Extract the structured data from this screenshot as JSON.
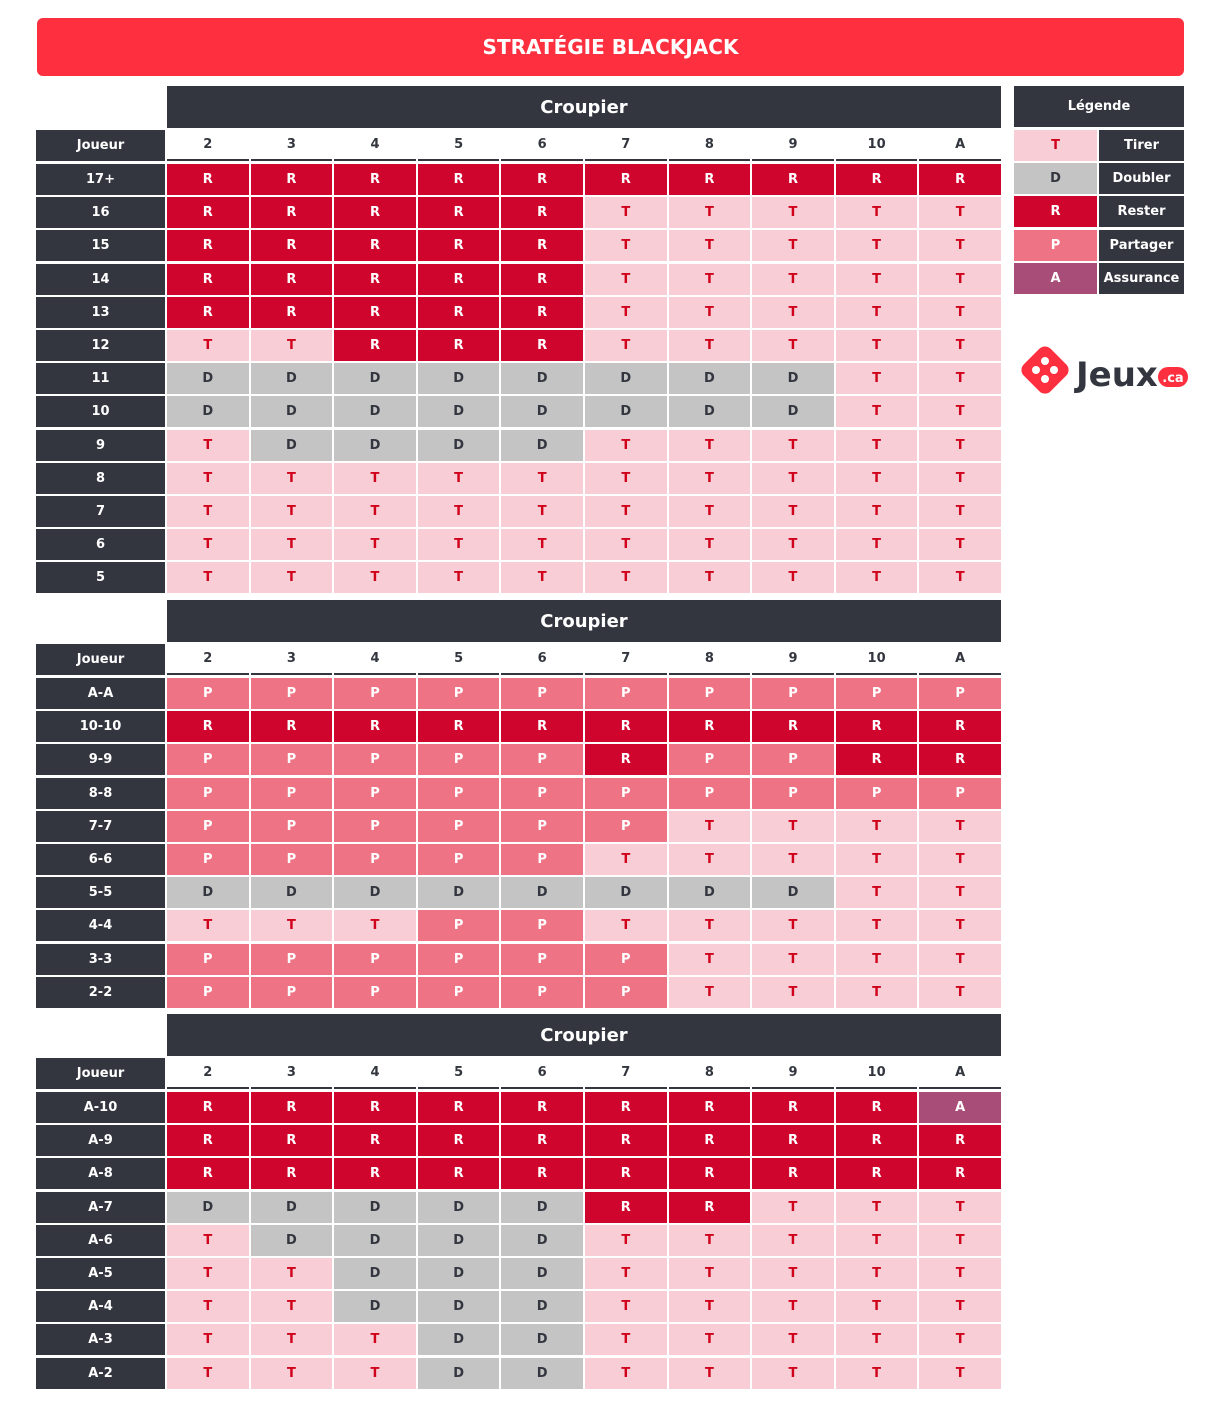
{
  "title": "STRATÉGIE BLACKJACK",
  "legend": {
    "title": "Légende",
    "items": [
      {
        "code": "T",
        "label": "Tirer",
        "color": "#f8cdd6",
        "text_color": "#d0021b"
      },
      {
        "code": "D",
        "label": "Doubler",
        "color": "#c4c4c4",
        "text_color": "#33363f"
      },
      {
        "code": "R",
        "label": "Rester",
        "color": "#d0052d",
        "text_color": "#ffffff"
      },
      {
        "code": "P",
        "label": "Partager",
        "color": "#ee7384",
        "text_color": "#ffffff"
      },
      {
        "code": "A",
        "label": "Assurance",
        "color": "#a84d78",
        "text_color": "#ffffff"
      }
    ]
  },
  "logo": {
    "name": "Jeux",
    "suffix": ".ca"
  },
  "tables": [
    {
      "header": "Croupier",
      "row_header": "Joueur",
      "columns": [
        "2",
        "3",
        "4",
        "5",
        "6",
        "7",
        "8",
        "9",
        "10",
        "A"
      ],
      "rows": [
        {
          "label": "17+",
          "cells": [
            "R",
            "R",
            "R",
            "R",
            "R",
            "R",
            "R",
            "R",
            "R",
            "R"
          ]
        },
        {
          "label": "16",
          "cells": [
            "R",
            "R",
            "R",
            "R",
            "R",
            "T",
            "T",
            "T",
            "T",
            "T"
          ]
        },
        {
          "label": "15",
          "cells": [
            "R",
            "R",
            "R",
            "R",
            "R",
            "T",
            "T",
            "T",
            "T",
            "T"
          ]
        },
        {
          "label": "14",
          "cells": [
            "R",
            "R",
            "R",
            "R",
            "R",
            "T",
            "T",
            "T",
            "T",
            "T"
          ]
        },
        {
          "label": "13",
          "cells": [
            "R",
            "R",
            "R",
            "R",
            "R",
            "T",
            "T",
            "T",
            "T",
            "T"
          ]
        },
        {
          "label": "12",
          "cells": [
            "T",
            "T",
            "R",
            "R",
            "R",
            "T",
            "T",
            "T",
            "T",
            "T"
          ]
        },
        {
          "label": "11",
          "cells": [
            "D",
            "D",
            "D",
            "D",
            "D",
            "D",
            "D",
            "D",
            "T",
            "T"
          ]
        },
        {
          "label": "10",
          "cells": [
            "D",
            "D",
            "D",
            "D",
            "D",
            "D",
            "D",
            "D",
            "T",
            "T"
          ]
        },
        {
          "label": "9",
          "cells": [
            "T",
            "D",
            "D",
            "D",
            "D",
            "T",
            "T",
            "T",
            "T",
            "T"
          ]
        },
        {
          "label": "8",
          "cells": [
            "T",
            "T",
            "T",
            "T",
            "T",
            "T",
            "T",
            "T",
            "T",
            "T"
          ]
        },
        {
          "label": "7",
          "cells": [
            "T",
            "T",
            "T",
            "T",
            "T",
            "T",
            "T",
            "T",
            "T",
            "T"
          ]
        },
        {
          "label": "6",
          "cells": [
            "T",
            "T",
            "T",
            "T",
            "T",
            "T",
            "T",
            "T",
            "T",
            "T"
          ]
        },
        {
          "label": "5",
          "cells": [
            "T",
            "T",
            "T",
            "T",
            "T",
            "T",
            "T",
            "T",
            "T",
            "T"
          ]
        }
      ]
    },
    {
      "header": "Croupier",
      "row_header": "Joueur",
      "columns": [
        "2",
        "3",
        "4",
        "5",
        "6",
        "7",
        "8",
        "9",
        "10",
        "A"
      ],
      "rows": [
        {
          "label": "A-A",
          "cells": [
            "P",
            "P",
            "P",
            "P",
            "P",
            "P",
            "P",
            "P",
            "P",
            "P"
          ]
        },
        {
          "label": "10-10",
          "cells": [
            "R",
            "R",
            "R",
            "R",
            "R",
            "R",
            "R",
            "R",
            "R",
            "R"
          ]
        },
        {
          "label": "9-9",
          "cells": [
            "P",
            "P",
            "P",
            "P",
            "P",
            "R",
            "P",
            "P",
            "R",
            "R"
          ]
        },
        {
          "label": "8-8",
          "cells": [
            "P",
            "P",
            "P",
            "P",
            "P",
            "P",
            "P",
            "P",
            "P",
            "P"
          ]
        },
        {
          "label": "7-7",
          "cells": [
            "P",
            "P",
            "P",
            "P",
            "P",
            "P",
            "T",
            "T",
            "T",
            "T"
          ]
        },
        {
          "label": "6-6",
          "cells": [
            "P",
            "P",
            "P",
            "P",
            "P",
            "T",
            "T",
            "T",
            "T",
            "T"
          ]
        },
        {
          "label": "5-5",
          "cells": [
            "D",
            "D",
            "D",
            "D",
            "D",
            "D",
            "D",
            "D",
            "T",
            "T"
          ]
        },
        {
          "label": "4-4",
          "cells": [
            "T",
            "T",
            "T",
            "P",
            "P",
            "T",
            "T",
            "T",
            "T",
            "T"
          ]
        },
        {
          "label": "3-3",
          "cells": [
            "P",
            "P",
            "P",
            "P",
            "P",
            "P",
            "T",
            "T",
            "T",
            "T"
          ]
        },
        {
          "label": "2-2",
          "cells": [
            "P",
            "P",
            "P",
            "P",
            "P",
            "P",
            "T",
            "T",
            "T",
            "T"
          ]
        }
      ]
    },
    {
      "header": "Croupier",
      "row_header": "Joueur",
      "columns": [
        "2",
        "3",
        "4",
        "5",
        "6",
        "7",
        "8",
        "9",
        "10",
        "A"
      ],
      "rows": [
        {
          "label": "A-10",
          "cells": [
            "R",
            "R",
            "R",
            "R",
            "R",
            "R",
            "R",
            "R",
            "R",
            "A"
          ]
        },
        {
          "label": "A-9",
          "cells": [
            "R",
            "R",
            "R",
            "R",
            "R",
            "R",
            "R",
            "R",
            "R",
            "R"
          ]
        },
        {
          "label": "A-8",
          "cells": [
            "R",
            "R",
            "R",
            "R",
            "R",
            "R",
            "R",
            "R",
            "R",
            "R"
          ]
        },
        {
          "label": "A-7",
          "cells": [
            "D",
            "D",
            "D",
            "D",
            "D",
            "R",
            "R",
            "T",
            "T",
            "T"
          ]
        },
        {
          "label": "A-6",
          "cells": [
            "T",
            "D",
            "D",
            "D",
            "D",
            "T",
            "T",
            "T",
            "T",
            "T"
          ]
        },
        {
          "label": "A-5",
          "cells": [
            "T",
            "T",
            "D",
            "D",
            "D",
            "T",
            "T",
            "T",
            "T",
            "T"
          ]
        },
        {
          "label": "A-4",
          "cells": [
            "T",
            "T",
            "D",
            "D",
            "D",
            "T",
            "T",
            "T",
            "T",
            "T"
          ]
        },
        {
          "label": "A-3",
          "cells": [
            "T",
            "T",
            "T",
            "D",
            "D",
            "T",
            "T",
            "T",
            "T",
            "T"
          ]
        },
        {
          "label": "A-2",
          "cells": [
            "T",
            "T",
            "T",
            "D",
            "D",
            "T",
            "T",
            "T",
            "T",
            "T"
          ]
        }
      ]
    }
  ]
}
